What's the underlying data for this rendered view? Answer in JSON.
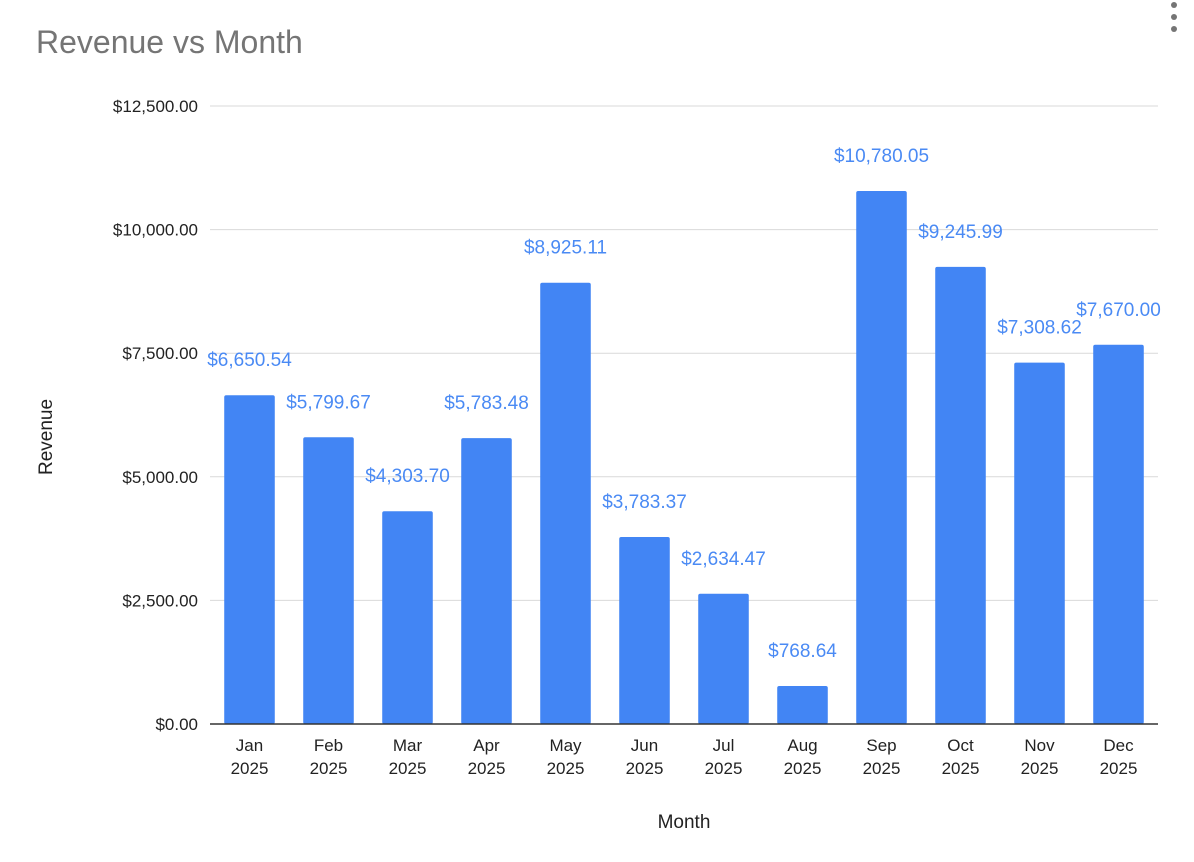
{
  "menu_icon": "more-vert-icon",
  "colors": {
    "bar": "#4285f4",
    "data_label": "#4a8af4",
    "grid": "#d9d9d9",
    "title": "#757575"
  },
  "chart_data": {
    "type": "bar",
    "title": "Revenue vs Month",
    "xlabel": "Month",
    "ylabel": "Revenue",
    "categories": [
      [
        "Jan",
        "2025"
      ],
      [
        "Feb",
        "2025"
      ],
      [
        "Mar",
        "2025"
      ],
      [
        "Apr",
        "2025"
      ],
      [
        "May",
        "2025"
      ],
      [
        "Jun",
        "2025"
      ],
      [
        "Jul",
        "2025"
      ],
      [
        "Aug",
        "2025"
      ],
      [
        "Sep",
        "2025"
      ],
      [
        "Oct",
        "2025"
      ],
      [
        "Nov",
        "2025"
      ],
      [
        "Dec",
        "2025"
      ]
    ],
    "values": [
      6650.54,
      5799.67,
      4303.7,
      5783.48,
      8925.11,
      3783.37,
      2634.47,
      768.64,
      10780.05,
      9245.99,
      7308.62,
      7670.0
    ],
    "data_labels": [
      "$6,650.54",
      "$5,799.67",
      "$4,303.70",
      "$5,783.48",
      "$8,925.11",
      "$3,783.37",
      "$2,634.47",
      "$768.64",
      "$10,780.05",
      "$9,245.99",
      "$7,308.62",
      "$7,670.00"
    ],
    "yticks": [
      0,
      2500,
      5000,
      7500,
      10000,
      12500
    ],
    "ytick_labels": [
      "$0.00",
      "$2,500.00",
      "$5,000.00",
      "$7,500.00",
      "$10,000.00",
      "$12,500.00"
    ],
    "ylim": [
      0,
      12500
    ],
    "grid": true,
    "legend": "none"
  }
}
